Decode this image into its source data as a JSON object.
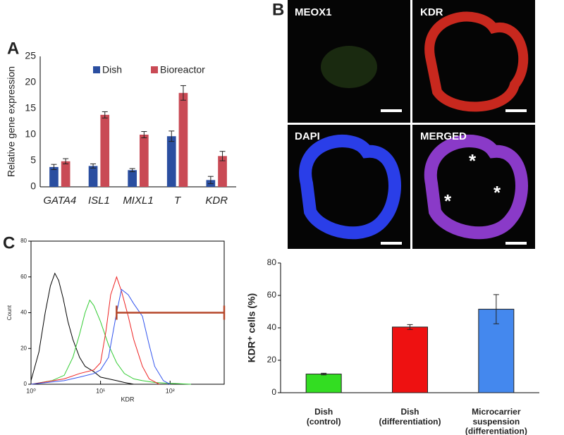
{
  "panel_labels": [
    "A",
    "B",
    "C"
  ],
  "micrographs": {
    "labels": [
      "MEOX1",
      "KDR",
      "DAPI",
      "MERGED"
    ],
    "markers": [
      "*",
      "*",
      "*"
    ]
  },
  "chart_data": [
    {
      "type": "bar",
      "ylabel": "Relative gene expression",
      "categories": [
        "GATA4",
        "ISL1",
        "MIXL1",
        "T",
        "KDR"
      ],
      "series": [
        {
          "name": "Dish",
          "color": "#2a4ea0",
          "values": [
            3.8,
            4.0,
            3.2,
            9.7,
            1.3
          ],
          "errors": [
            0.5,
            0.4,
            0.3,
            1.0,
            0.7
          ]
        },
        {
          "name": "Bioreactor",
          "color": "#c94a55",
          "values": [
            4.9,
            13.8,
            10.0,
            18.0,
            5.9
          ],
          "errors": [
            0.5,
            0.6,
            0.6,
            1.4,
            0.9
          ]
        }
      ],
      "ylim": [
        0,
        25
      ],
      "yticks": [
        0,
        5,
        10,
        15,
        20,
        25
      ],
      "legend": "top"
    },
    {
      "type": "line",
      "xlabel": "KDR",
      "ylabel": "Count",
      "xscale": "log",
      "xlim": [
        1,
        600
      ],
      "xticks": [
        {
          "value": 1,
          "label": "10⁰"
        },
        {
          "value": 10,
          "label": "10¹"
        },
        {
          "value": 100,
          "label": "10²"
        }
      ],
      "ylim": [
        0,
        80
      ],
      "yticks": [
        0,
        20,
        40,
        60,
        80
      ],
      "series": [
        {
          "color": "#000000",
          "x": [
            1,
            1.3,
            1.6,
            1.9,
            2.2,
            2.5,
            2.9,
            3.4,
            4,
            5,
            6,
            8,
            10,
            13,
            17,
            22,
            30,
            40
          ],
          "values": [
            2,
            18,
            40,
            55,
            62,
            58,
            48,
            35,
            25,
            15,
            10,
            7,
            4,
            3,
            2,
            1,
            0,
            0
          ]
        },
        {
          "color": "#33cc33",
          "x": [
            1,
            2,
            3,
            4,
            5,
            6,
            7,
            8,
            10,
            13,
            17,
            22,
            30,
            40,
            60,
            100,
            200
          ],
          "values": [
            0,
            2,
            5,
            15,
            28,
            40,
            47,
            44,
            35,
            22,
            12,
            6,
            3,
            2,
            1,
            0.5,
            0
          ]
        },
        {
          "color": "#ee2222",
          "x": [
            1,
            3,
            5,
            8,
            10,
            12,
            14,
            17,
            20,
            25,
            30,
            40,
            50,
            70
          ],
          "values": [
            0,
            3,
            6,
            8,
            12,
            30,
            50,
            60,
            52,
            38,
            25,
            10,
            3,
            0
          ]
        },
        {
          "color": "#3355ee",
          "x": [
            1,
            3,
            5,
            8,
            10,
            13,
            17,
            20,
            25,
            30,
            40,
            50,
            60,
            80,
            100
          ],
          "values": [
            0,
            2,
            4,
            6,
            8,
            15,
            40,
            53,
            50,
            45,
            38,
            22,
            10,
            2,
            0
          ]
        }
      ],
      "gate": {
        "x": [
          17,
          600
        ],
        "y": 40,
        "color": "#b5472a"
      }
    },
    {
      "type": "bar",
      "ylabel": "KDR⁺ cells (%)",
      "categories": [
        "Dish\n(control)",
        "Dish\n(differentiation)",
        "Microcarrier\nsuspension\n(differentiation)"
      ],
      "values": [
        11.5,
        40.5,
        51.5
      ],
      "errors": [
        0.5,
        1.5,
        9
      ],
      "colors": [
        "#33dd22",
        "#ee1111",
        "#4488ee"
      ],
      "ylim": [
        0,
        80
      ],
      "yticks": [
        0,
        20,
        40,
        60,
        80
      ]
    }
  ]
}
